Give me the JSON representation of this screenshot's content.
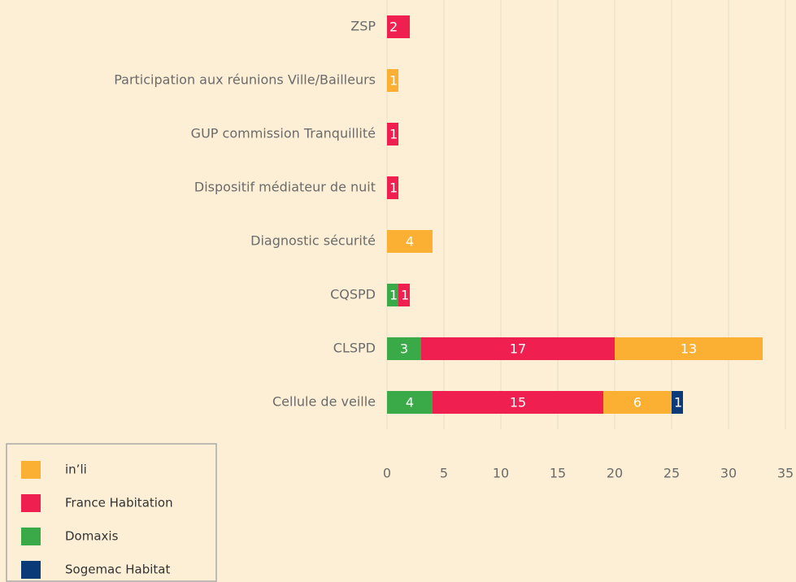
{
  "chart_data": {
    "type": "stacked_bar_horizontal",
    "categories": [
      "ZSP",
      "Participation aux réunions Ville/Bailleurs",
      "GUP commission Tranquillité",
      "Dispositif médiateur de nuit",
      "Diagnostic sécurité",
      "CQSPD",
      "CLSPD",
      "Cellule de veille"
    ],
    "series": [
      {
        "name": "in’li",
        "color": "#fbb034",
        "values": [
          null,
          1,
          null,
          null,
          4,
          null,
          13,
          6
        ]
      },
      {
        "name": "France Habitation",
        "color": "#ef1f4f",
        "values": [
          2,
          null,
          1,
          1,
          null,
          1,
          17,
          15
        ]
      },
      {
        "name": "Domaxis",
        "color": "#3aaa49",
        "values": [
          null,
          null,
          null,
          null,
          null,
          1,
          3,
          4
        ]
      },
      {
        "name": "Sogemac Habitat",
        "color": "#0b3a78",
        "values": [
          null,
          null,
          null,
          null,
          null,
          null,
          null,
          1
        ]
      }
    ],
    "xlim": [
      0,
      35
    ],
    "xticks": [
      0,
      5,
      10,
      15,
      20,
      25,
      30,
      35
    ],
    "grid": true,
    "legend": "bottom-left"
  }
}
